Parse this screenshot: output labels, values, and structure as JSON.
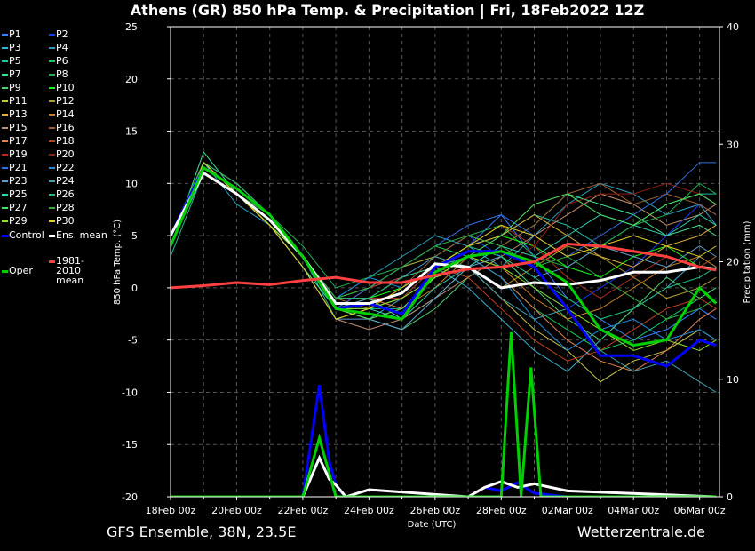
{
  "chart_data": {
    "type": "line",
    "title": "Athens  (GR)  850 hPa Temp. & Precipitation | Fri, 18Feb2022 12Z",
    "ylabel": "850 hPa Temp. (°C)",
    "y2label": "Precipitation (mm)",
    "xlabel": "Date (UTC)",
    "footer_left": "GFS Ensemble, 38N, 23.5E",
    "footer_right": "Wetterzentrale.de",
    "xlim": [
      0,
      16.6
    ],
    "xticks": [
      {
        "value": 0,
        "label": "18Feb 00z"
      },
      {
        "value": 2,
        "label": "20Feb 00z"
      },
      {
        "value": 4,
        "label": "22Feb 00z"
      },
      {
        "value": 6,
        "label": "24Feb 00z"
      },
      {
        "value": 8,
        "label": "26Feb 00z"
      },
      {
        "value": 10,
        "label": "28Feb 00z"
      },
      {
        "value": 12,
        "label": "02Mar 00z"
      },
      {
        "value": 14,
        "label": "04Mar 00z"
      },
      {
        "value": 16,
        "label": "06Mar 00z"
      }
    ],
    "xminor_ticks": [
      1,
      3,
      5,
      7,
      9,
      11,
      13,
      15
    ],
    "ylim": [
      -20,
      25
    ],
    "yticks": [
      -20,
      -15,
      -10,
      -5,
      0,
      5,
      10,
      15,
      20,
      25
    ],
    "y2lim": [
      0,
      40
    ],
    "y2ticks": [
      0,
      10,
      20,
      30,
      40
    ],
    "grid": true,
    "x": [
      0,
      1,
      2,
      3,
      4,
      5,
      6,
      7,
      8,
      9,
      10,
      11,
      12,
      13,
      14,
      15,
      16,
      16.5
    ],
    "series": [
      {
        "name": "P1",
        "color": "#3a7fff",
        "values": [
          4,
          12,
          9,
          6,
          3,
          -2,
          -1,
          -3,
          2,
          4,
          7,
          3,
          -1,
          -3,
          -5,
          -4,
          -2,
          -3
        ]
      },
      {
        "name": "P2",
        "color": "#1a3cff",
        "values": [
          5,
          12,
          9,
          7,
          3,
          -1,
          0,
          1,
          3,
          5,
          3,
          0,
          -2,
          0,
          2,
          5,
          8,
          7
        ]
      },
      {
        "name": "P3",
        "color": "#3cb0d0",
        "values": [
          4,
          11,
          9,
          6,
          2,
          -2,
          -3,
          -1,
          2,
          0,
          -3,
          -6,
          -8,
          -5,
          -2,
          0,
          3,
          2
        ]
      },
      {
        "name": "P4",
        "color": "#2aa0c0",
        "values": [
          5,
          12,
          8,
          6,
          3,
          -1,
          1,
          3,
          5,
          4,
          2,
          5,
          8,
          10,
          9,
          7,
          8,
          6
        ]
      },
      {
        "name": "P5",
        "color": "#20c0a0",
        "values": [
          3,
          11,
          9,
          6,
          3,
          -3,
          -2,
          -2,
          1,
          3,
          5,
          7,
          6,
          4,
          6,
          8,
          9,
          9
        ]
      },
      {
        "name": "P6",
        "color": "#10d060",
        "values": [
          4,
          12,
          10,
          7,
          3,
          -1,
          0,
          2,
          4,
          3,
          1,
          -2,
          -4,
          -6,
          -5,
          -3,
          -1,
          0
        ]
      },
      {
        "name": "P7",
        "color": "#40e090",
        "values": [
          4,
          13,
          9,
          6,
          2,
          -2,
          -1,
          -3,
          -1,
          2,
          4,
          6,
          9,
          8,
          7,
          5,
          6,
          5
        ]
      },
      {
        "name": "P8",
        "color": "#20b050",
        "values": [
          5,
          12,
          9,
          7,
          4,
          0,
          1,
          2,
          3,
          5,
          6,
          3,
          2,
          4,
          6,
          7,
          10,
          9
        ]
      },
      {
        "name": "P9",
        "color": "#50d070",
        "values": [
          4,
          12,
          9,
          6,
          3,
          -2,
          -3,
          -4,
          -2,
          1,
          3,
          0,
          -3,
          -5,
          -2,
          1,
          -1,
          0
        ]
      },
      {
        "name": "P10",
        "color": "#10ff10",
        "values": [
          4,
          12,
          9,
          7,
          3,
          -1,
          -1,
          0,
          2,
          4,
          5,
          4,
          2,
          1,
          3,
          4,
          2,
          3
        ]
      },
      {
        "name": "P11",
        "color": "#c8c850",
        "values": [
          4,
          11,
          9,
          6,
          2,
          -3,
          -2,
          -1,
          1,
          2,
          -1,
          -4,
          -6,
          -9,
          -7,
          -6,
          -4,
          -5
        ]
      },
      {
        "name": "P12",
        "color": "#b0a030",
        "values": [
          5,
          12,
          9,
          7,
          3,
          -1,
          0,
          2,
          3,
          2,
          0,
          2,
          4,
          3,
          1,
          -1,
          0,
          1
        ]
      },
      {
        "name": "P13",
        "color": "#e0b040",
        "values": [
          4,
          12,
          10,
          7,
          3,
          -2,
          -1,
          1,
          2,
          4,
          5,
          7,
          5,
          3,
          2,
          4,
          5,
          6
        ]
      },
      {
        "name": "P14",
        "color": "#d08020",
        "values": [
          4,
          12,
          9,
          6,
          3,
          -2,
          -3,
          -2,
          0,
          3,
          2,
          -1,
          -3,
          -2,
          0,
          2,
          3,
          2
        ]
      },
      {
        "name": "P15",
        "color": "#c09070",
        "values": [
          4,
          12,
          9,
          6,
          2,
          -3,
          -4,
          -3,
          -1,
          1,
          3,
          5,
          7,
          9,
          8,
          6,
          7,
          8
        ]
      },
      {
        "name": "P16",
        "color": "#a06030",
        "values": [
          5,
          12,
          9,
          7,
          3,
          -1,
          -2,
          0,
          3,
          5,
          4,
          6,
          9,
          10,
          8,
          9,
          8,
          7
        ]
      },
      {
        "name": "P17",
        "color": "#e08050",
        "values": [
          4,
          11,
          9,
          6,
          3,
          -2,
          -1,
          -2,
          1,
          3,
          1,
          -2,
          -5,
          -7,
          -8,
          -6,
          -3,
          -2
        ]
      },
      {
        "name": "P18",
        "color": "#c04020",
        "values": [
          4,
          12,
          9,
          6,
          3,
          -2,
          0,
          1,
          2,
          1,
          -2,
          -5,
          -7,
          -6,
          -4,
          -2,
          -1,
          -2
        ]
      },
      {
        "name": "P19",
        "color": "#b03020",
        "values": [
          4,
          12,
          9,
          7,
          3,
          -1,
          -1,
          -1,
          2,
          4,
          6,
          4,
          1,
          -1,
          1,
          3,
          2,
          3
        ]
      },
      {
        "name": "P20",
        "color": "#902010",
        "values": [
          4,
          12,
          10,
          7,
          3,
          -2,
          -2,
          0,
          2,
          3,
          2,
          4,
          8,
          9,
          9,
          10,
          9,
          8
        ]
      },
      {
        "name": "P21",
        "color": "#3070e0",
        "values": [
          4,
          12,
          9,
          6,
          3,
          -2,
          0,
          2,
          4,
          6,
          7,
          5,
          3,
          5,
          7,
          9,
          12,
          12
        ]
      },
      {
        "name": "P22",
        "color": "#2090e0",
        "values": [
          5,
          12,
          9,
          6,
          3,
          -1,
          1,
          0,
          2,
          3,
          1,
          -3,
          -6,
          -4,
          -3,
          -5,
          -4,
          -5
        ]
      },
      {
        "name": "P23",
        "color": "#60a0d0",
        "values": [
          4,
          11,
          9,
          6,
          2,
          -3,
          -3,
          -4,
          -1,
          2,
          3,
          1,
          2,
          4,
          3,
          2,
          4,
          3
        ]
      },
      {
        "name": "P24",
        "color": "#40a0b0",
        "values": [
          4,
          12,
          9,
          7,
          3,
          -2,
          -1,
          1,
          3,
          2,
          -1,
          -3,
          -2,
          -6,
          -8,
          -7,
          -9,
          -10
        ]
      },
      {
        "name": "P25",
        "color": "#30d0b0",
        "values": [
          4,
          12,
          9,
          6,
          3,
          -2,
          -2,
          -3,
          0,
          2,
          4,
          3,
          5,
          7,
          6,
          5,
          7,
          6
        ]
      },
      {
        "name": "P26",
        "color": "#20c080",
        "values": [
          4,
          12,
          10,
          7,
          3,
          -1,
          -1,
          1,
          2,
          4,
          3,
          1,
          -1,
          -3,
          -2,
          0,
          1,
          2
        ]
      },
      {
        "name": "P27",
        "color": "#50e060",
        "values": [
          4,
          12,
          9,
          6,
          3,
          -2,
          -3,
          -2,
          1,
          3,
          5,
          8,
          9,
          7,
          6,
          8,
          9,
          8
        ]
      },
      {
        "name": "P28",
        "color": "#30b040",
        "values": [
          5,
          12,
          9,
          7,
          3,
          -1,
          0,
          2,
          4,
          5,
          4,
          2,
          3,
          1,
          -1,
          -3,
          -2,
          -1
        ]
      },
      {
        "name": "P29",
        "color": "#90e030",
        "values": [
          4,
          12,
          9,
          6,
          3,
          -2,
          -2,
          -1,
          1,
          3,
          2,
          0,
          -2,
          -4,
          -6,
          -5,
          -6,
          -5
        ]
      },
      {
        "name": "P30",
        "color": "#e0d020",
        "values": [
          4,
          12,
          9,
          6,
          2,
          -3,
          -2,
          0,
          2,
          4,
          6,
          5,
          3,
          4,
          5,
          4,
          3,
          4
        ]
      },
      {
        "name": "Control",
        "color": "#0000ff",
        "values": [
          5,
          11.5,
          9.5,
          7,
          3,
          -2,
          -1.5,
          -2.5,
          2,
          3.5,
          3.5,
          2,
          -2,
          -6.5,
          -6.5,
          -7.5,
          -5,
          -5.5
        ]
      },
      {
        "name": "Ens. mean",
        "color": "#ffffff",
        "values": [
          5,
          11,
          9,
          6.5,
          3,
          -1.5,
          -1.5,
          -0.5,
          2.3,
          2,
          0,
          0.5,
          0.3,
          0.7,
          1.5,
          1.5,
          2,
          1.8
        ]
      },
      {
        "name": "Oper",
        "color": "#00d000",
        "values": [
          4,
          11.5,
          9.5,
          7,
          3,
          -2,
          -2.5,
          -3,
          1.5,
          3,
          3.5,
          2.5,
          0.5,
          -4,
          -5.5,
          -5,
          0,
          -1.5
        ]
      },
      {
        "name": "1981-2010 mean",
        "color": "#ff4040",
        "values": [
          0,
          0.2,
          0.5,
          0.3,
          0.7,
          1,
          0.5,
          0.5,
          1.2,
          1.8,
          2,
          2.5,
          4.2,
          4,
          3.5,
          3,
          2,
          1.7
        ]
      }
    ],
    "precipitation": [
      {
        "color": "#0000ff",
        "x": [
          0,
          4,
          4.5,
          4.8,
          5,
          5.3,
          6,
          9,
          9.5,
          10,
          10.5,
          11,
          12,
          16.5
        ],
        "values": [
          0,
          0,
          9.5,
          3,
          1,
          0,
          0,
          0,
          0.8,
          0.5,
          1.2,
          0.3,
          0,
          0
        ]
      },
      {
        "color": "#ffffff",
        "x": [
          0,
          4,
          4.5,
          4.8,
          5,
          5.3,
          6,
          9,
          9.5,
          10,
          10.5,
          11,
          12,
          16.5
        ],
        "values": [
          0,
          0,
          3.3,
          1.5,
          1,
          0,
          0.6,
          0,
          0.8,
          1.3,
          0.8,
          1.1,
          0.5,
          0
        ]
      },
      {
        "color": "#00d000",
        "x": [
          0,
          4,
          4.5,
          5,
          6,
          10,
          10.3,
          10.6,
          10.9,
          11.2,
          16.5
        ],
        "values": [
          0,
          0,
          5,
          0,
          0,
          0,
          14,
          0,
          11,
          0,
          0
        ]
      }
    ]
  }
}
